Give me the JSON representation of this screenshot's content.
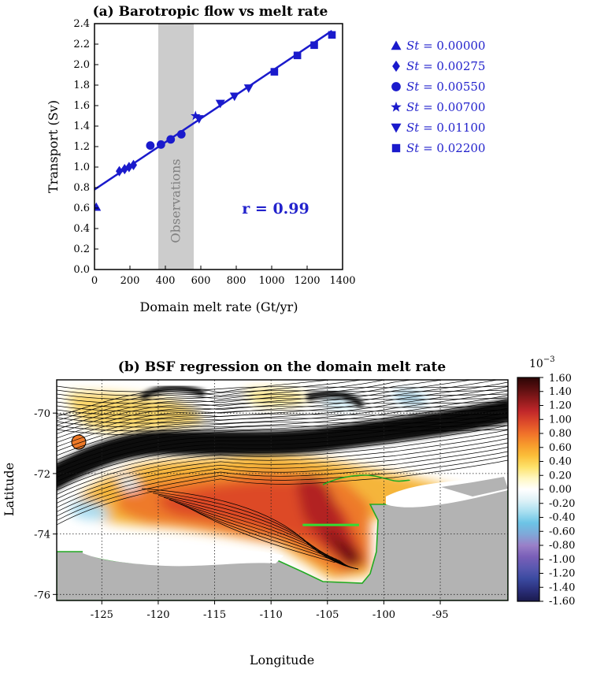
{
  "chart_data": [
    {
      "type": "scatter",
      "title": "(a) Barotropic flow vs melt rate",
      "xlabel": "Domain melt rate (Gt/yr)",
      "ylabel": "Transport (Sv)",
      "xlim": [
        0,
        1400
      ],
      "ylim": [
        0.0,
        2.4
      ],
      "xticks": [
        "0",
        "200",
        "400",
        "600",
        "800",
        "1000",
        "1200",
        "1400"
      ],
      "yticks": [
        "0.0",
        "0.2",
        "0.4",
        "0.6",
        "0.8",
        "1.0",
        "1.2",
        "1.4",
        "1.6",
        "1.8",
        "2.0",
        "2.2",
        "2.4"
      ],
      "shaded_band": {
        "label": "Observations",
        "x_from": 360,
        "x_to": 560,
        "color": "#cccccc"
      },
      "fit_line": {
        "x": [
          0,
          1340
        ],
        "y": [
          0.78,
          2.33
        ]
      },
      "annotation": "r = 0.99",
      "color": "#1a1acc",
      "legend_position": "right",
      "series": [
        {
          "name": "St = 0.00000",
          "symbol_label": "St",
          "value_label": "= 0.00000",
          "marker": "triangle-up",
          "x": [
            10
          ],
          "y": [
            0.61
          ]
        },
        {
          "name": "St = 0.00275",
          "symbol_label": "St",
          "value_label": "= 0.00275",
          "marker": "diamond",
          "x": [
            140,
            170,
            195,
            220
          ],
          "y": [
            0.96,
            0.98,
            1.0,
            1.02
          ]
        },
        {
          "name": "St = 0.00550",
          "symbol_label": "St",
          "value_label": "= 0.00550",
          "marker": "circle",
          "x": [
            315,
            375,
            430,
            490
          ],
          "y": [
            1.21,
            1.22,
            1.27,
            1.32
          ]
        },
        {
          "name": "St = 0.00700",
          "symbol_label": "St",
          "value_label": "= 0.00700",
          "marker": "star",
          "x": [
            570
          ],
          "y": [
            1.5
          ]
        },
        {
          "name": "St = 0.01100",
          "symbol_label": "St",
          "value_label": "= 0.01100",
          "marker": "triangle-down",
          "x": [
            590,
            710,
            790,
            870
          ],
          "y": [
            1.47,
            1.62,
            1.69,
            1.77
          ]
        },
        {
          "name": "St = 0.02200",
          "symbol_label": "St",
          "value_label": "= 0.02200",
          "marker": "square",
          "x": [
            1015,
            1145,
            1240,
            1340
          ],
          "y": [
            1.93,
            2.09,
            2.19,
            2.29
          ]
        }
      ]
    },
    {
      "type": "heatmap",
      "title": "(b) BSF regression on the domain melt rate",
      "xlabel": "Longitude",
      "ylabel": "Latitude",
      "xlim": [
        -129,
        -89
      ],
      "ylim": [
        -76.2,
        -68.9
      ],
      "xticks": [
        "-125",
        "-120",
        "-115",
        "-110",
        "-105",
        "-100",
        "-95"
      ],
      "xtick_values": [
        -125,
        -120,
        -115,
        -110,
        -105,
        -100,
        -95
      ],
      "yticks": [
        "-70",
        "-72",
        "-74",
        "-76"
      ],
      "ytick_values": [
        -70,
        -72,
        -74,
        -76
      ],
      "grid": "dotted",
      "green_segment": {
        "lon": [
          -107.2,
          -102.2
        ],
        "lat": [
          -73.7,
          -73.7
        ],
        "color": "#33dd33"
      },
      "coastline_color": "#22aa22",
      "land_color": "#b3b3b3",
      "colorbar": {
        "exponent_label": "10",
        "exponent_power": "−3",
        "ticks": [
          "1.60",
          "1.40",
          "1.20",
          "1.00",
          "0.80",
          "0.60",
          "0.40",
          "0.20",
          "0.00",
          "-0.20",
          "-0.40",
          "-0.60",
          "-0.80",
          "-1.00",
          "-1.20",
          "-1.40",
          "-1.60"
        ],
        "range": [
          -1.6,
          1.6
        ],
        "colors": [
          "#1a1a4d",
          "#2b2f7a",
          "#3a4aa0",
          "#5a58b0",
          "#7a5fb8",
          "#9a80c8",
          "#7fa8d8",
          "#6cc4e6",
          "#a8dff0",
          "#ddf1f7",
          "#ffffff",
          "#fff7c0",
          "#fde26a",
          "#fbbf3a",
          "#f79a2c",
          "#f0712a",
          "#dc4a2a",
          "#c0272a",
          "#8e1a1c",
          "#5a0f10",
          "#2b0505"
        ]
      }
    }
  ]
}
